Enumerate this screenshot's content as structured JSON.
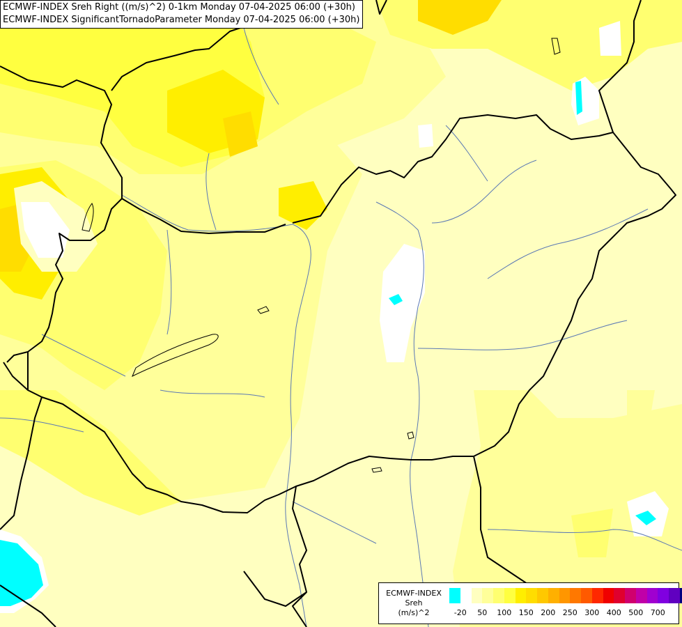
{
  "title": {
    "line1": "ECMWF-INDEX Sreh Right ((m/s)^2) 0-1km Monday 07-04-2025 06:00 (+30h)",
    "line2": "ECMWF-INDEX SignificantTornadoParameter Monday 07-04-2025 06:00 (+30h)"
  },
  "legend": {
    "title_lines": [
      "ECMWF-INDEX",
      "Sreh",
      "(m/s)^2"
    ],
    "colors": [
      "#00ffff",
      "#ffffff",
      "#ffffc0",
      "#ffff9a",
      "#ffff70",
      "#ffff40",
      "#ffee00",
      "#ffdd00",
      "#ffc800",
      "#ffb000",
      "#ff9600",
      "#ff7800",
      "#ff5a00",
      "#ff2800",
      "#f00000",
      "#e0002e",
      "#d0006e",
      "#c000a8",
      "#a000d0",
      "#8000e0",
      "#6000c0",
      "#000080"
    ],
    "ticks": [
      "-20",
      "50",
      "100",
      "150",
      "200",
      "250",
      "300",
      "400",
      "500",
      "700"
    ],
    "tick_positions": [
      1,
      3,
      5,
      7,
      9,
      11,
      13,
      15,
      17,
      19
    ]
  },
  "map_colors": {
    "base": "#ffffc0",
    "light_yellow": "#ffff9a",
    "yellow": "#ffff70",
    "bright_yellow": "#ffff40",
    "gold": "#ffee00",
    "deep_gold": "#ffdd00",
    "orange": "#ffc800",
    "white": "#ffffff",
    "cyan": "#00ffff",
    "borders": "#000000",
    "rivers": "#5a78b4"
  }
}
